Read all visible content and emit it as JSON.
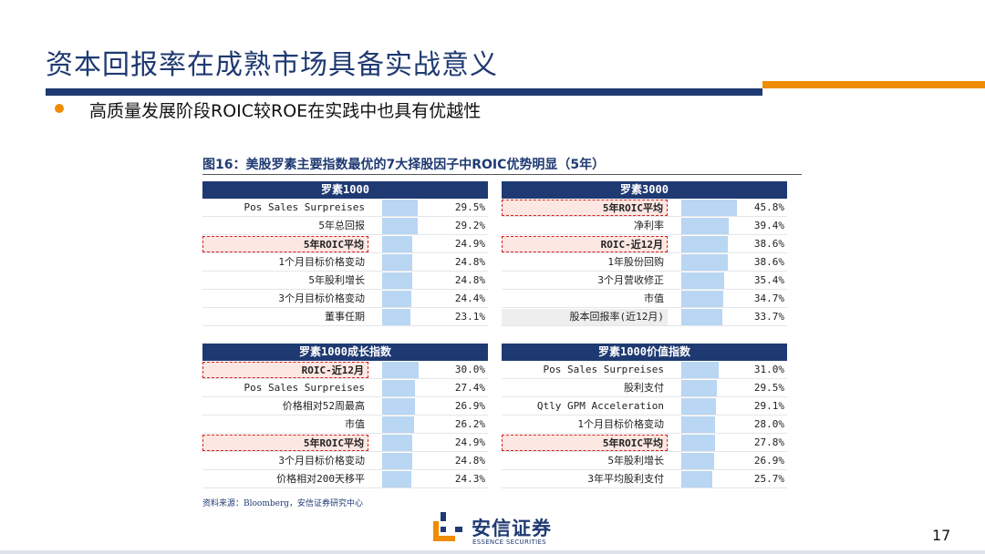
{
  "slide": {
    "title": "资本回报率在成熟市场具备实战意义",
    "subtitle": "高质量发展阶段ROIC较ROE在实践中也具有优越性",
    "page_number": "17",
    "colors": {
      "primary": "#1f3a72",
      "accent": "#f08c00",
      "bar": "#b9d6f2",
      "highlight": "#d62020"
    }
  },
  "figure": {
    "title": "图16：美股罗素主要指数最优的7大择股因子中ROIC优势明显（5年）",
    "source": "资料来源：Bloomberg，安信证券研究中心"
  },
  "chart_data": [
    {
      "type": "bar",
      "title": "罗素1000",
      "categories": [
        "Pos Sales Surpreises",
        "5年总回报",
        "5年ROIC平均",
        "1个月目标价格变动",
        "5年股利增长",
        "3个月目标价格变动",
        "董事任期"
      ],
      "values": [
        29.5,
        29.2,
        24.9,
        24.8,
        24.8,
        24.4,
        23.1
      ],
      "labels": [
        "29.5%",
        "29.2%",
        "24.9%",
        "24.8%",
        "24.8%",
        "24.4%",
        "23.1%"
      ],
      "highlighted": [
        "5年ROIC平均"
      ]
    },
    {
      "type": "bar",
      "title": "罗素3000",
      "categories": [
        "5年ROIC平均",
        "净利率",
        "ROIC-近12月",
        "1年股份回购",
        "3个月营收修正",
        "市值",
        "股本回报率(近12月)"
      ],
      "values": [
        45.8,
        39.4,
        38.6,
        38.6,
        35.4,
        34.7,
        33.7
      ],
      "labels": [
        "45.8%",
        "39.4%",
        "38.6%",
        "38.6%",
        "35.4%",
        "34.7%",
        "33.7%"
      ],
      "highlighted": [
        "5年ROIC平均",
        "ROIC-近12月"
      ],
      "shaded": [
        "股本回报率(近12月)"
      ]
    },
    {
      "type": "bar",
      "title": "罗素1000成长指数",
      "categories": [
        "ROIC-近12月",
        "Pos Sales Surpreises",
        "价格相对52周最高",
        "市值",
        "5年ROIC平均",
        "3个月目标价格变动",
        "价格相对200天移平"
      ],
      "values": [
        30.0,
        27.4,
        26.9,
        26.2,
        24.9,
        24.8,
        24.3
      ],
      "labels": [
        "30.0%",
        "27.4%",
        "26.9%",
        "26.2%",
        "24.9%",
        "24.8%",
        "24.3%"
      ],
      "highlighted": [
        "ROIC-近12月",
        "5年ROIC平均"
      ]
    },
    {
      "type": "bar",
      "title": "罗素1000价值指数",
      "categories": [
        "Pos Sales Surpreises",
        "股利支付",
        "Qtly GPM Acceleration",
        "1个月目标价格变动",
        "5年ROIC平均",
        "5年股利增长",
        "3年平均股利支付"
      ],
      "values": [
        31.0,
        29.5,
        29.1,
        28.0,
        27.8,
        26.9,
        25.7
      ],
      "labels": [
        "31.0%",
        "29.5%",
        "29.1%",
        "28.0%",
        "27.8%",
        "26.9%",
        "25.7%"
      ],
      "highlighted": [
        "5年ROIC平均"
      ]
    }
  ],
  "logo": {
    "name_cn": "安信证券",
    "name_en": "ESSENCE SECURITIES"
  }
}
